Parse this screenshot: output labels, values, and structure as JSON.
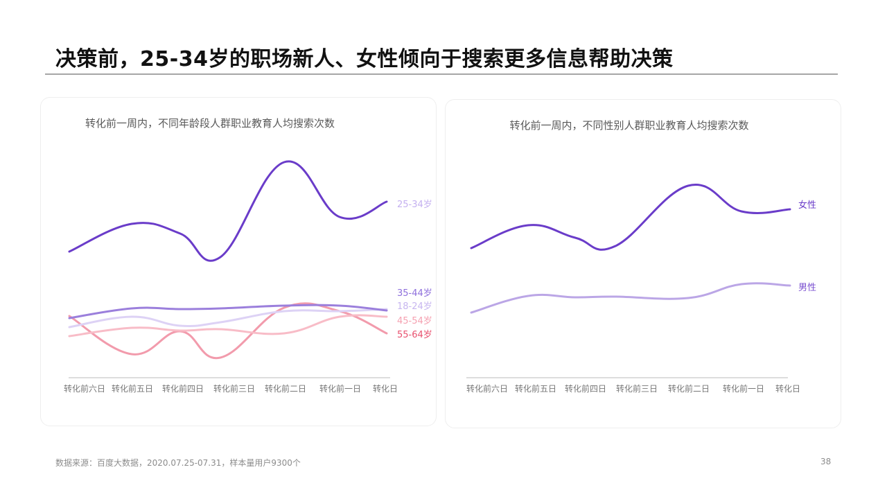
{
  "page": {
    "title": "决策前，25-34岁的职场新人、女性倾向于搜索更多信息帮助决策",
    "source": "数据来源：百度大数据，2020.07.25-07.31，样本量用户9300个",
    "page_number": "38"
  },
  "charts": {
    "left": {
      "title": "转化前一周内，不同年龄段人群职业教育人均搜索次数"
    },
    "right": {
      "title": "转化前一周内，不同性别人群职业教育人均搜索次数"
    }
  },
  "chart_data": [
    {
      "type": "line",
      "title": "转化前一周内，不同年龄段人群职业教育人均搜索次数",
      "xlabel": "",
      "ylabel": "",
      "categories": [
        "转化前六日",
        "转化前五日",
        "转化前四日",
        "转化前三日",
        "转化前二日",
        "转化前一日",
        "转化日"
      ],
      "grid": false,
      "y_axis_visible": false,
      "legend_position": "right-end-labels",
      "note": "Values are relative, estimated from pixel heights (no y-axis shown); higher = more searches",
      "series": [
        {
          "name": "25-34岁",
          "color": "#6a3cc9",
          "label_color": "#c4b0f0",
          "values": [
            18.2,
            22.2,
            20.8,
            17.4,
            31.1,
            23.2,
            25.4
          ]
        },
        {
          "name": "35-44岁",
          "color": "#9b7fdc",
          "label_color": "#8e6fdc",
          "values": [
            8.6,
            10.0,
            9.9,
            10.0,
            10.4,
            10.4,
            9.7
          ]
        },
        {
          "name": "18-24岁",
          "color": "#ddd2f5",
          "label_color": "#c7b6f0",
          "values": [
            7.3,
            8.8,
            7.5,
            8.0,
            9.6,
            9.6,
            9.9
          ]
        },
        {
          "name": "45-54岁",
          "color": "#f8bcc7",
          "label_color": "#f5a0b0",
          "values": [
            6.0,
            7.2,
            6.8,
            7.0,
            6.4,
            8.8,
            8.8
          ]
        },
        {
          "name": "55-64岁",
          "color": "#f29bac",
          "label_color": "#e8506e",
          "values": [
            8.9,
            3.4,
            6.7,
            2.9,
            10.1,
            9.6,
            6.4
          ]
        }
      ]
    },
    {
      "type": "line",
      "title": "转化前一周内，不同性别人群职业教育人均搜索次数",
      "xlabel": "",
      "ylabel": "",
      "categories": [
        "转化前六日",
        "转化前五日",
        "转化前四日",
        "转化前三日",
        "转化前二日",
        "转化前一日",
        "转化日"
      ],
      "grid": false,
      "y_axis_visible": false,
      "legend_position": "right-end-labels",
      "note": "Values are relative, estimated from pixel heights (no y-axis shown)",
      "series": [
        {
          "name": "女性",
          "color": "#6a3cc9",
          "label_color": "#6a3cc9",
          "values": [
            18.7,
            22.0,
            20.2,
            19.0,
            27.7,
            24.0,
            24.3
          ]
        },
        {
          "name": "男性",
          "color": "#bba6e6",
          "label_color": "#7a4fd0",
          "values": [
            9.4,
            11.8,
            11.6,
            11.7,
            11.5,
            13.5,
            13.3
          ]
        }
      ]
    }
  ]
}
